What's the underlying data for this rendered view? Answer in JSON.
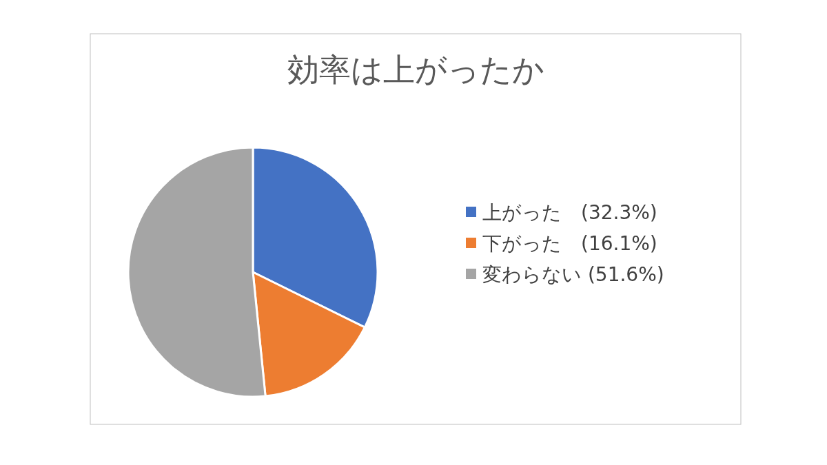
{
  "chart_data": {
    "type": "pie",
    "title": "効率は上がったか",
    "categories": [
      "上がった　(32.3%)",
      "下がった　(16.1%)",
      "変わらない (51.6%)"
    ],
    "values": [
      32.3,
      16.1,
      51.6
    ],
    "colors": [
      "#4472c4",
      "#ed7d31",
      "#a5a5a5"
    ],
    "legend": "right"
  }
}
